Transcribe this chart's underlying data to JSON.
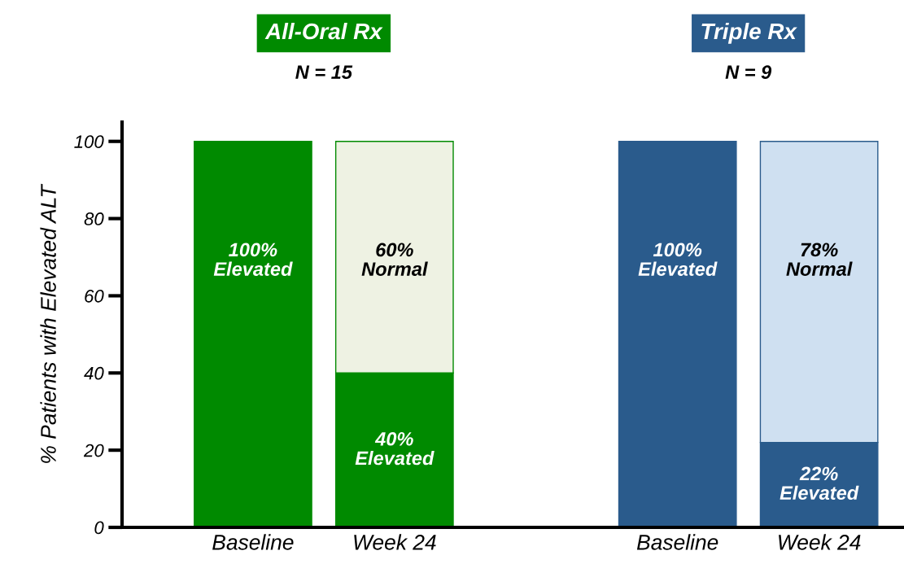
{
  "chart_data": {
    "type": "bar",
    "stacked": true,
    "ylabel": "% Patients with Elevated ALT",
    "categories": [
      "Baseline",
      "Week 24",
      null,
      "Baseline",
      "Week 24"
    ],
    "series": [
      {
        "colors": [
          "#008a00",
          "#008a00",
          "#ffffff",
          "#2a5b8c",
          "#2a5b8c"
        ],
        "values": [
          100,
          40,
          null,
          100,
          22
        ],
        "value_labels": [
          "100%\nElevated",
          "40%\nElevated",
          null,
          "100%\nElevated",
          "22%\nElevated"
        ]
      },
      {
        "colors": [
          "#eef2e3",
          "#eef2e3",
          "#ffffff",
          "#cfe0f1",
          "#cfe0f1"
        ],
        "values": [
          null,
          60,
          null,
          null,
          78
        ],
        "value_labels": [
          null,
          "60%\nNormal",
          null,
          null,
          "78%\nNormal"
        ]
      }
    ],
    "ylim": [
      0,
      105
    ],
    "yticks": [
      0,
      20,
      40,
      60,
      80,
      100
    ],
    "grid": false,
    "legend": false,
    "annotations": [
      "All-Oral Rx",
      "N = 15",
      "Triple Rx",
      "N = 9"
    ]
  }
}
